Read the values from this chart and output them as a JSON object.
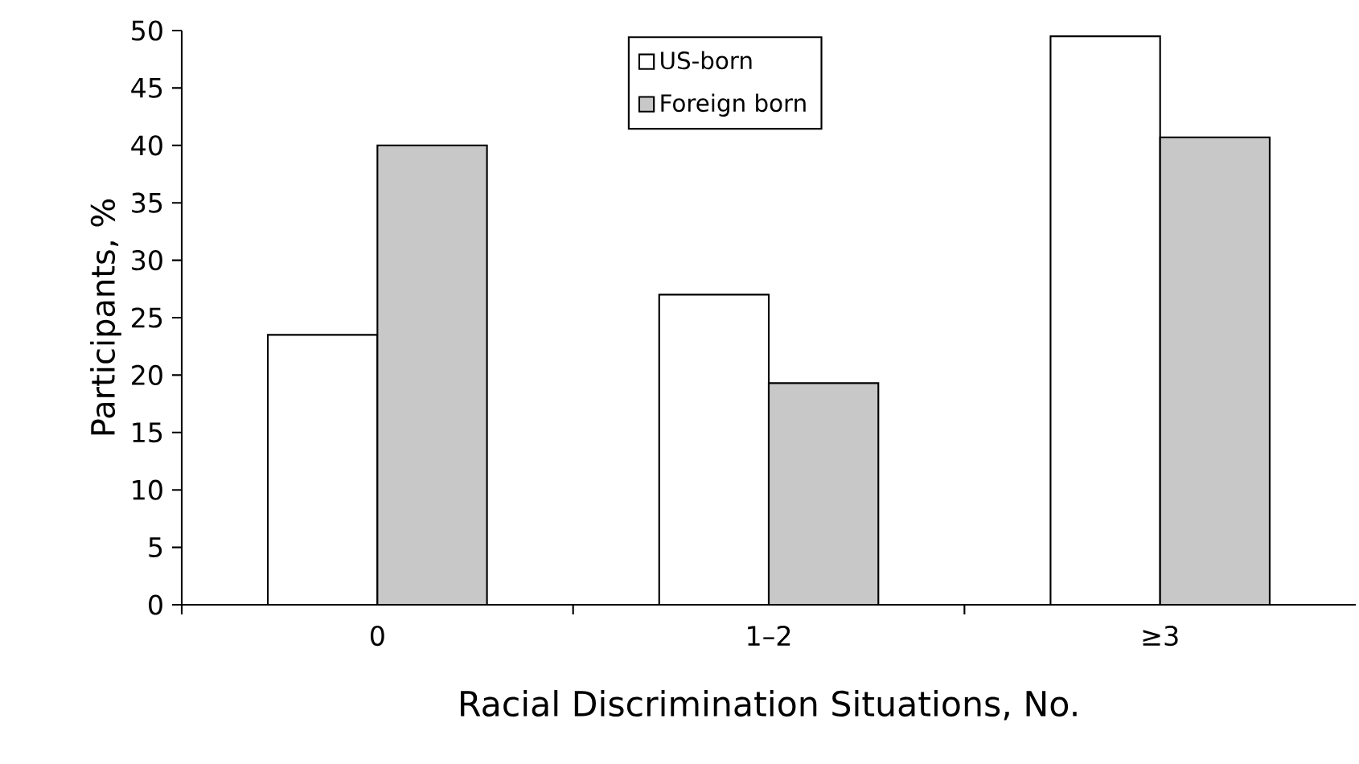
{
  "chart_data": {
    "type": "bar",
    "xlabel": "Racial Discrimination Situations, No.",
    "ylabel": "Participants, %",
    "categories": [
      "0",
      "1–2",
      "≥3"
    ],
    "series": [
      {
        "name": "US-born",
        "color": "#ffffff",
        "values": [
          23.5,
          27,
          49.5
        ]
      },
      {
        "name": "Foreign born",
        "color": "#c8c8c8",
        "values": [
          40,
          19.3,
          40.7
        ]
      }
    ],
    "ylim": [
      0,
      50
    ],
    "yticks": [
      0,
      5,
      10,
      15,
      20,
      25,
      30,
      35,
      40,
      45,
      50
    ],
    "grid": false,
    "legend": "top"
  }
}
